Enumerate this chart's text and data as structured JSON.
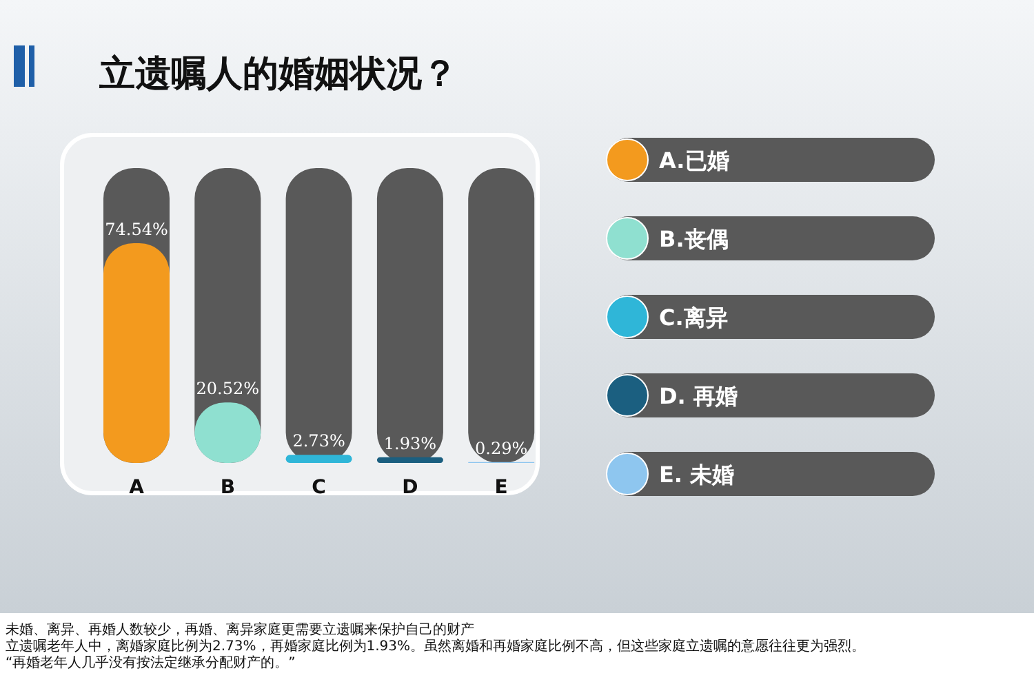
{
  "chart_data": {
    "type": "bar",
    "title": "立遗嘱人的婚姻状况？",
    "categories": [
      "A",
      "B",
      "C",
      "D",
      "E"
    ],
    "series": [
      {
        "name": "A.已婚",
        "color": "#f39a1e",
        "values": [
          74.54,
          null,
          null,
          null,
          null
        ],
        "value_labels": [
          "74.54%",
          null,
          null,
          null,
          null
        ]
      },
      {
        "name": "B.丧偶",
        "color": "#8fe0d0",
        "values": [
          null,
          20.52,
          null,
          null,
          null
        ],
        "value_labels": [
          null,
          "20.52%",
          null,
          null,
          null
        ]
      },
      {
        "name": "C.离异",
        "color": "#2fb6d8",
        "values": [
          null,
          null,
          2.73,
          null,
          null
        ],
        "value_labels": [
          null,
          null,
          "2.73%",
          null,
          null
        ]
      },
      {
        "name": "D. 再婚",
        "color": "#1b5f80",
        "values": [
          null,
          null,
          null,
          1.93,
          null
        ],
        "value_labels": [
          null,
          null,
          null,
          "1.93%",
          null
        ]
      },
      {
        "name": "E. 未婚",
        "color": "#8ec6ef",
        "values": [
          null,
          null,
          null,
          null,
          0.29
        ],
        "value_labels": [
          null,
          null,
          null,
          null,
          "0.29%"
        ]
      }
    ],
    "legend": "right",
    "annotations": [
      "未婚、离异、再婚人数较少，再婚、离异家庭更需要立遗嘱来保护自己的财产",
      "立遗嘱老年人中，离婚家庭比例为2.73%，再婚家庭比例为1.93%。虽然离婚和再婚家庭比例不高，但这些家庭立遗嘱的意愿往往更为强烈。",
      "“再婚老年人几乎没有按法定继承分配财产的。”"
    ]
  }
}
